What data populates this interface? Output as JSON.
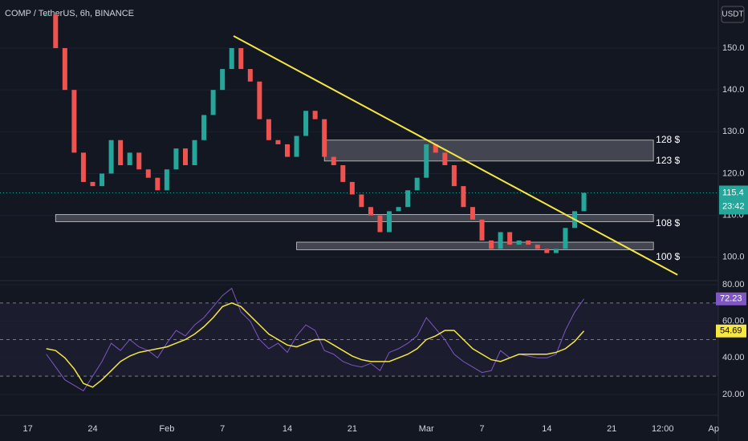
{
  "header": {
    "title": "COMP / TetherUS, 6h, BINANCE",
    "currency": "USDT",
    "countdown": "23:42"
  },
  "chart_data": [
    {
      "type": "candlestick",
      "x": [
        2,
        3,
        4,
        5,
        6,
        7,
        8,
        9,
        10,
        11,
        12,
        13,
        14,
        15,
        16,
        17,
        18,
        19,
        20,
        21,
        22,
        23,
        24,
        25,
        26,
        27,
        28,
        29,
        30,
        31,
        32,
        33,
        34,
        35,
        36,
        37,
        38,
        39,
        40,
        41,
        42,
        43,
        44,
        45,
        46,
        47,
        48,
        49,
        50,
        51,
        52,
        53,
        54,
        55,
        56,
        57,
        58,
        59,
        60
      ],
      "values": [
        158,
        150,
        140,
        125,
        118,
        117,
        120,
        128,
        122,
        125,
        121,
        119,
        116,
        121,
        126,
        122,
        128,
        134,
        140,
        145,
        150,
        145,
        142,
        133,
        128,
        127,
        124,
        129,
        135,
        133,
        124,
        122,
        118,
        115,
        112,
        110,
        106,
        111,
        112,
        116,
        119,
        127,
        125,
        122,
        117,
        112,
        109,
        104,
        102,
        106,
        103,
        104,
        103,
        102,
        101,
        102,
        107,
        111,
        115.4
      ],
      "up_color": "#26a69a",
      "down_color": "#ef5350",
      "xlim": [
        -3,
        74.5
      ],
      "ylim": [
        94.4,
        161.5
      ],
      "yticks": [
        {
          "value": 100,
          "label": "100.0"
        },
        {
          "value": 110,
          "label": "110.0"
        },
        {
          "value": 120,
          "label": "120.0"
        },
        {
          "value": 130,
          "label": "130.0"
        },
        {
          "value": 140,
          "label": "140.0"
        },
        {
          "value": 150,
          "label": "150.0"
        }
      ],
      "zones": [
        {
          "low": 123,
          "high": 128,
          "start": 32,
          "end": 67.5
        },
        {
          "low": 108.5,
          "high": 110.2,
          "start": 3,
          "end": 67.5
        },
        {
          "low": 101.8,
          "high": 103.6,
          "start": 29,
          "end": 67.5
        }
      ],
      "levels": [
        {
          "value": 128,
          "label": "128 $"
        },
        {
          "value": 123,
          "label": "123 $"
        },
        {
          "value": 108,
          "label": "108 $"
        },
        {
          "value": 100,
          "label": "100 $"
        }
      ],
      "trendline": {
        "x": [
          22.2,
          70.1
        ],
        "values": [
          152.9,
          95.8
        ],
        "color": "#f5e642"
      }
    },
    {
      "type": "line",
      "x": [
        2,
        3,
        4,
        5,
        6,
        7,
        8,
        9,
        10,
        11,
        12,
        13,
        14,
        15,
        16,
        17,
        18,
        19,
        20,
        21,
        22,
        23,
        24,
        25,
        26,
        27,
        28,
        29,
        30,
        31,
        32,
        33,
        34,
        35,
        36,
        37,
        38,
        39,
        40,
        41,
        42,
        43,
        44,
        45,
        46,
        47,
        48,
        49,
        50,
        51,
        52,
        53,
        54,
        55,
        56,
        57,
        58,
        59,
        60
      ],
      "series": [
        {
          "color": "#7e57c2",
          "values": [
            42,
            35,
            28,
            25,
            22,
            30,
            38,
            48,
            44,
            50,
            46,
            44,
            40,
            48,
            55,
            52,
            58,
            62,
            68,
            74,
            78,
            65,
            60,
            50,
            45,
            48,
            43,
            52,
            58,
            55,
            44,
            42,
            38,
            36,
            35,
            37,
            33,
            43,
            45,
            48,
            52,
            62,
            56,
            50,
            42,
            38,
            35,
            32,
            33,
            44,
            40,
            42,
            41,
            40,
            40,
            42,
            55,
            65,
            72.23
          ]
        },
        {
          "color": "#f5e642",
          "values": [
            45,
            44,
            40,
            34,
            26,
            24,
            28,
            33,
            38,
            41,
            43,
            44,
            45,
            46,
            48,
            50,
            53,
            57,
            62,
            68,
            70,
            68,
            63,
            58,
            53,
            50,
            47,
            46,
            48,
            50,
            50,
            47,
            44,
            41,
            39,
            38,
            38,
            38,
            40,
            42,
            45,
            50,
            52,
            55,
            55,
            50,
            45,
            42,
            39,
            38,
            40,
            42,
            42,
            42,
            42,
            43,
            45,
            49,
            54.69
          ]
        }
      ],
      "bands": [
        70,
        50,
        30
      ],
      "xlim": [
        -3,
        74.5
      ],
      "ylim": [
        9.9,
        82.2
      ],
      "yticks": [
        {
          "value": 20,
          "label": "20.00"
        },
        {
          "value": 40,
          "label": "40.00"
        },
        {
          "value": 60,
          "label": "60.00"
        },
        {
          "value": 80,
          "label": "80.00"
        }
      ],
      "xticks": [
        {
          "value": 0,
          "label": "17"
        },
        {
          "value": 7,
          "label": "24"
        },
        {
          "value": 15,
          "label": "Feb"
        },
        {
          "value": 21,
          "label": "7"
        },
        {
          "value": 28,
          "label": "14"
        },
        {
          "value": 35,
          "label": "21"
        },
        {
          "value": 43,
          "label": "Mar"
        },
        {
          "value": 49,
          "label": "7"
        },
        {
          "value": 56,
          "label": "14"
        },
        {
          "value": 63,
          "label": "21"
        },
        {
          "value": 68.5,
          "label": "12:00"
        },
        {
          "value": 74,
          "label": "Ap"
        }
      ]
    }
  ]
}
